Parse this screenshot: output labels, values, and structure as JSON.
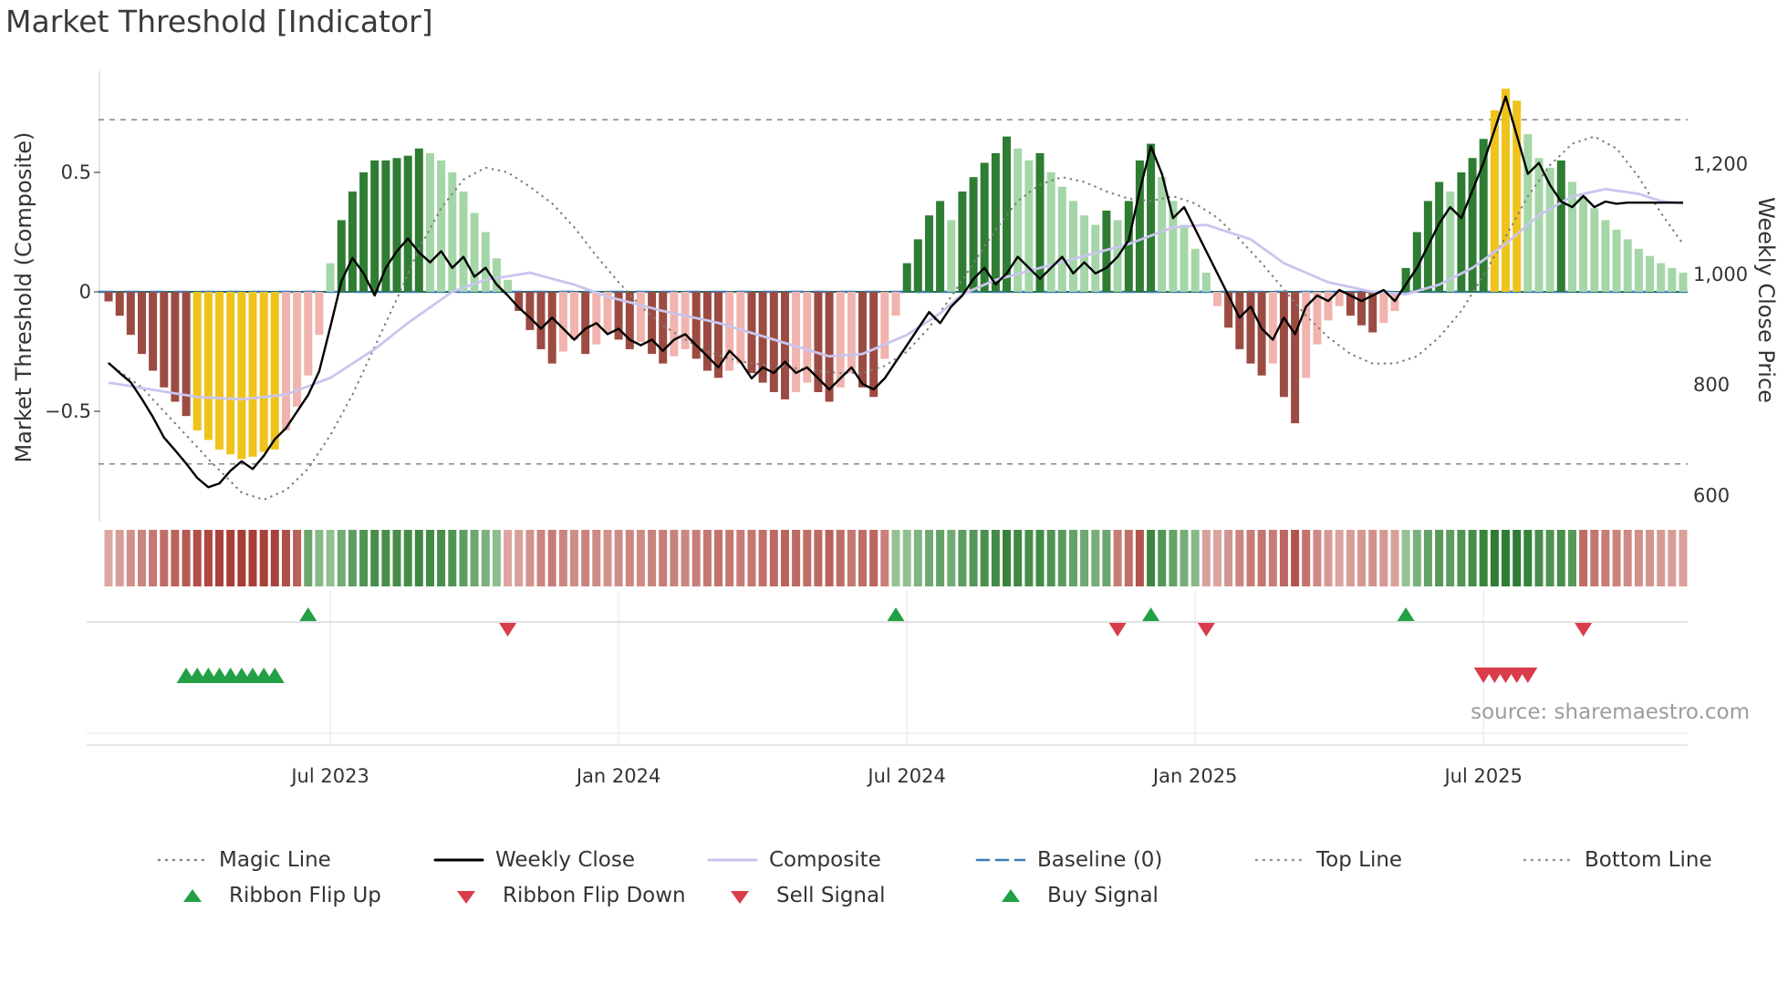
{
  "chart_data": {
    "type": "bar",
    "title": "Market Threshold [Indicator]",
    "source_text": "source: sharemaestro.com",
    "ylabel_left": "Market Threshold (Composite)",
    "ylabel_right": "Weekly Close Price",
    "ylim_left": [
      -0.95,
      0.95
    ],
    "baseline_value": 0,
    "top_line_value": 0.72,
    "bottom_line_value": -0.72,
    "weeks": 143,
    "x_ticks": [
      {
        "label": "Jul 2023",
        "week": 20
      },
      {
        "label": "Jan 2024",
        "week": 46
      },
      {
        "label": "Jul 2024",
        "week": 72
      },
      {
        "label": "Jan 2025",
        "week": 98
      },
      {
        "label": "Jul 2025",
        "week": 124
      }
    ],
    "y_ticks_left": [
      {
        "label": "0.5",
        "value": 0.5
      },
      {
        "label": "0",
        "value": 0
      },
      {
        "label": "−0.5",
        "value": -0.5
      }
    ],
    "y_ticks_right": [
      {
        "label": "1,200",
        "value": 1200
      },
      {
        "label": "1,000",
        "value": 1000
      },
      {
        "label": "800",
        "value": 800
      },
      {
        "label": "600",
        "value": 600
      }
    ],
    "threshold_bars": [
      -0.04,
      -0.1,
      -0.18,
      -0.26,
      -0.33,
      -0.4,
      -0.46,
      -0.52,
      -0.58,
      -0.62,
      -0.66,
      -0.68,
      -0.7,
      -0.69,
      -0.67,
      -0.66,
      -0.58,
      -0.48,
      -0.35,
      -0.18,
      0.12,
      0.3,
      0.42,
      0.5,
      0.55,
      0.55,
      0.56,
      0.57,
      0.6,
      0.58,
      0.55,
      0.5,
      0.42,
      0.33,
      0.25,
      0.14,
      0.05,
      -0.08,
      -0.16,
      -0.24,
      -0.3,
      -0.25,
      -0.2,
      -0.26,
      -0.22,
      -0.17,
      -0.2,
      -0.24,
      -0.21,
      -0.26,
      -0.3,
      -0.27,
      -0.24,
      -0.28,
      -0.33,
      -0.36,
      -0.33,
      -0.3,
      -0.34,
      -0.38,
      -0.42,
      -0.45,
      -0.42,
      -0.38,
      -0.42,
      -0.46,
      -0.4,
      -0.34,
      -0.4,
      -0.44,
      -0.28,
      -0.1,
      0.12,
      0.22,
      0.32,
      0.38,
      0.3,
      0.42,
      0.48,
      0.54,
      0.58,
      0.65,
      0.6,
      0.55,
      0.58,
      0.5,
      0.44,
      0.38,
      0.32,
      0.28,
      0.34,
      0.3,
      0.38,
      0.55,
      0.62,
      0.48,
      0.38,
      0.28,
      0.18,
      0.08,
      -0.06,
      -0.15,
      -0.24,
      -0.3,
      -0.35,
      -0.3,
      -0.44,
      -0.55,
      -0.36,
      -0.22,
      -0.12,
      -0.06,
      -0.1,
      -0.14,
      -0.17,
      -0.13,
      -0.08,
      0.1,
      0.25,
      0.38,
      0.46,
      0.42,
      0.5,
      0.56,
      0.64,
      0.76,
      0.85,
      0.8,
      0.66,
      0.56,
      0.52,
      0.55,
      0.46,
      0.4,
      0.35,
      0.3,
      0.26,
      0.22,
      0.18,
      0.15,
      0.12,
      0.1,
      0.08
    ],
    "yellow_highlight_weeks": [
      8,
      9,
      10,
      11,
      12,
      13,
      14,
      15,
      125,
      126,
      127
    ],
    "weekly_close": [
      840,
      822,
      805,
      775,
      742,
      705,
      682,
      658,
      632,
      615,
      622,
      645,
      662,
      648,
      672,
      702,
      722,
      752,
      782,
      825,
      905,
      988,
      1030,
      1002,
      962,
      1012,
      1042,
      1065,
      1040,
      1022,
      1042,
      1012,
      1032,
      996,
      1012,
      982,
      962,
      940,
      922,
      902,
      922,
      902,
      882,
      902,
      912,
      892,
      902,
      882,
      872,
      882,
      862,
      882,
      892,
      872,
      852,
      832,
      862,
      842,
      812,
      832,
      822,
      842,
      822,
      832,
      812,
      792,
      812,
      832,
      802,
      792,
      812,
      842,
      872,
      902,
      932,
      912,
      942,
      962,
      992,
      1012,
      982,
      1002,
      1032,
      1012,
      992,
      1012,
      1032,
      1002,
      1022,
      1002,
      1012,
      1032,
      1062,
      1152,
      1232,
      1182,
      1102,
      1122,
      1082,
      1042,
      1002,
      962,
      922,
      942,
      902,
      882,
      922,
      892,
      942,
      962,
      952,
      972,
      962,
      952,
      962,
      972,
      952,
      982,
      1012,
      1052,
      1092,
      1122,
      1102,
      1152,
      1202,
      1262,
      1322,
      1252,
      1182,
      1202,
      1162,
      1132,
      1122,
      1142,
      1122,
      1132,
      1128,
      1130,
      1130,
      1130,
      1130,
      1130,
      1130
    ],
    "composite_points": [
      [
        0,
        -0.38
      ],
      [
        4,
        -0.41
      ],
      [
        8,
        -0.44
      ],
      [
        12,
        -0.45
      ],
      [
        16,
        -0.43
      ],
      [
        20,
        -0.36
      ],
      [
        24,
        -0.24
      ],
      [
        27,
        -0.13
      ],
      [
        31,
        0.0
      ],
      [
        34,
        0.05
      ],
      [
        38,
        0.08
      ],
      [
        42,
        0.03
      ],
      [
        45,
        -0.02
      ],
      [
        50,
        -0.08
      ],
      [
        55,
        -0.13
      ],
      [
        60,
        -0.2
      ],
      [
        65,
        -0.27
      ],
      [
        68,
        -0.26
      ],
      [
        72,
        -0.18
      ],
      [
        75,
        -0.09
      ],
      [
        77,
        -0.01
      ],
      [
        80,
        0.05
      ],
      [
        84,
        0.1
      ],
      [
        88,
        0.15
      ],
      [
        92,
        0.2
      ],
      [
        96,
        0.27
      ],
      [
        99,
        0.28
      ],
      [
        103,
        0.22
      ],
      [
        106,
        0.12
      ],
      [
        110,
        0.04
      ],
      [
        114,
        0.0
      ],
      [
        117,
        -0.01
      ],
      [
        120,
        0.03
      ],
      [
        123,
        0.1
      ],
      [
        126,
        0.2
      ],
      [
        129,
        0.32
      ],
      [
        132,
        0.4
      ],
      [
        135,
        0.43
      ],
      [
        138,
        0.41
      ],
      [
        140,
        0.38
      ],
      [
        142,
        0.37
      ]
    ],
    "magic_line_points": [
      [
        0,
        -0.3
      ],
      [
        3,
        -0.4
      ],
      [
        6,
        -0.55
      ],
      [
        9,
        -0.7
      ],
      [
        12,
        -0.84
      ],
      [
        14,
        -0.87
      ],
      [
        16,
        -0.83
      ],
      [
        18,
        -0.74
      ],
      [
        20,
        -0.6
      ],
      [
        22,
        -0.43
      ],
      [
        24,
        -0.23
      ],
      [
        26,
        -0.03
      ],
      [
        28,
        0.18
      ],
      [
        30,
        0.35
      ],
      [
        32,
        0.47
      ],
      [
        34,
        0.52
      ],
      [
        36,
        0.5
      ],
      [
        38,
        0.44
      ],
      [
        40,
        0.37
      ],
      [
        42,
        0.27
      ],
      [
        44,
        0.15
      ],
      [
        46,
        0.04
      ],
      [
        48,
        -0.06
      ],
      [
        50,
        -0.14
      ],
      [
        52,
        -0.2
      ],
      [
        54,
        -0.25
      ],
      [
        56,
        -0.28
      ],
      [
        58,
        -0.3
      ],
      [
        60,
        -0.31
      ],
      [
        62,
        -0.32
      ],
      [
        64,
        -0.33
      ],
      [
        66,
        -0.34
      ],
      [
        68,
        -0.34
      ],
      [
        70,
        -0.31
      ],
      [
        72,
        -0.25
      ],
      [
        74,
        -0.15
      ],
      [
        76,
        -0.02
      ],
      [
        78,
        0.12
      ],
      [
        80,
        0.26
      ],
      [
        82,
        0.38
      ],
      [
        84,
        0.45
      ],
      [
        86,
        0.48
      ],
      [
        88,
        0.46
      ],
      [
        90,
        0.42
      ],
      [
        92,
        0.39
      ],
      [
        94,
        0.38
      ],
      [
        96,
        0.4
      ],
      [
        98,
        0.37
      ],
      [
        100,
        0.31
      ],
      [
        102,
        0.22
      ],
      [
        104,
        0.12
      ],
      [
        106,
        0.01
      ],
      [
        108,
        -0.1
      ],
      [
        110,
        -0.19
      ],
      [
        112,
        -0.26
      ],
      [
        114,
        -0.3
      ],
      [
        116,
        -0.3
      ],
      [
        118,
        -0.27
      ],
      [
        120,
        -0.19
      ],
      [
        122,
        -0.08
      ],
      [
        124,
        0.07
      ],
      [
        126,
        0.23
      ],
      [
        128,
        0.4
      ],
      [
        130,
        0.53
      ],
      [
        132,
        0.62
      ],
      [
        134,
        0.65
      ],
      [
        136,
        0.6
      ],
      [
        138,
        0.48
      ],
      [
        140,
        0.33
      ],
      [
        142,
        0.2
      ]
    ],
    "ribbon_segments": [
      {
        "from": 0,
        "to": 17,
        "state": "down"
      },
      {
        "from": 18,
        "to": 35,
        "state": "up"
      },
      {
        "from": 36,
        "to": 70,
        "state": "down"
      },
      {
        "from": 71,
        "to": 90,
        "state": "up"
      },
      {
        "from": 91,
        "to": 93,
        "state": "down"
      },
      {
        "from": 94,
        "to": 98,
        "state": "up"
      },
      {
        "from": 99,
        "to": 116,
        "state": "down"
      },
      {
        "from": 117,
        "to": 132,
        "state": "up"
      },
      {
        "from": 133,
        "to": 142,
        "state": "down"
      }
    ],
    "signals": {
      "ribbon_flip_up_weeks": [
        18,
        71,
        94,
        117
      ],
      "ribbon_flip_down_weeks": [
        36,
        91,
        99,
        133
      ],
      "buy_signal_weeks": [
        7,
        8,
        9,
        10,
        11,
        12,
        13,
        14,
        15
      ],
      "sell_signal_weeks": [
        124,
        125,
        126,
        127,
        128
      ]
    },
    "colors": {
      "bar_positive_strong": "#2e7d33",
      "bar_positive_weak": "#a5d6a7",
      "bar_negative_strong": "#9c4b42",
      "bar_negative_weak": "#f1b3ad",
      "bar_highlight": "#efc31c",
      "ribbon_up_dark": "#2e7d32",
      "ribbon_up_light": "#cde8cd",
      "ribbon_down_dark": "#a63c34",
      "ribbon_down_light": "#f3d3cf",
      "weekly_close": "#000000",
      "composite": "#c9c5ee",
      "magic_line": "#808080",
      "baseline_dash": "#3b7cb8",
      "baseline_under": "#1d6b70",
      "guide_line": "#8a8a8a",
      "signal_green": "#22a045",
      "signal_red": "#d93c4a",
      "axis_text": "#333333",
      "grid_light": "#e9e9e9"
    }
  },
  "legend": {
    "row1": [
      {
        "label": "Magic Line",
        "type": "dotted",
        "color": "#888888"
      },
      {
        "label": "Weekly Close",
        "type": "solid",
        "color": "#000000"
      },
      {
        "label": "Composite",
        "type": "solid",
        "color": "#c9c5ee"
      },
      {
        "label": "Baseline (0)",
        "type": "dashed",
        "color": "#3b7cb8"
      },
      {
        "label": "Top Line",
        "type": "dotted",
        "color": "#999999"
      },
      {
        "label": "Bottom Line",
        "type": "dotted",
        "color": "#999999"
      }
    ],
    "row2": [
      {
        "label": "Ribbon Flip Up",
        "type": "triangle-up",
        "color": "#22a045"
      },
      {
        "label": "Ribbon Flip Down",
        "type": "triangle-down",
        "color": "#d93c4a"
      },
      {
        "label": "Sell Signal",
        "type": "triangle-down",
        "color": "#d93c4a"
      },
      {
        "label": "Buy Signal",
        "type": "triangle-up",
        "color": "#22a045"
      }
    ]
  }
}
